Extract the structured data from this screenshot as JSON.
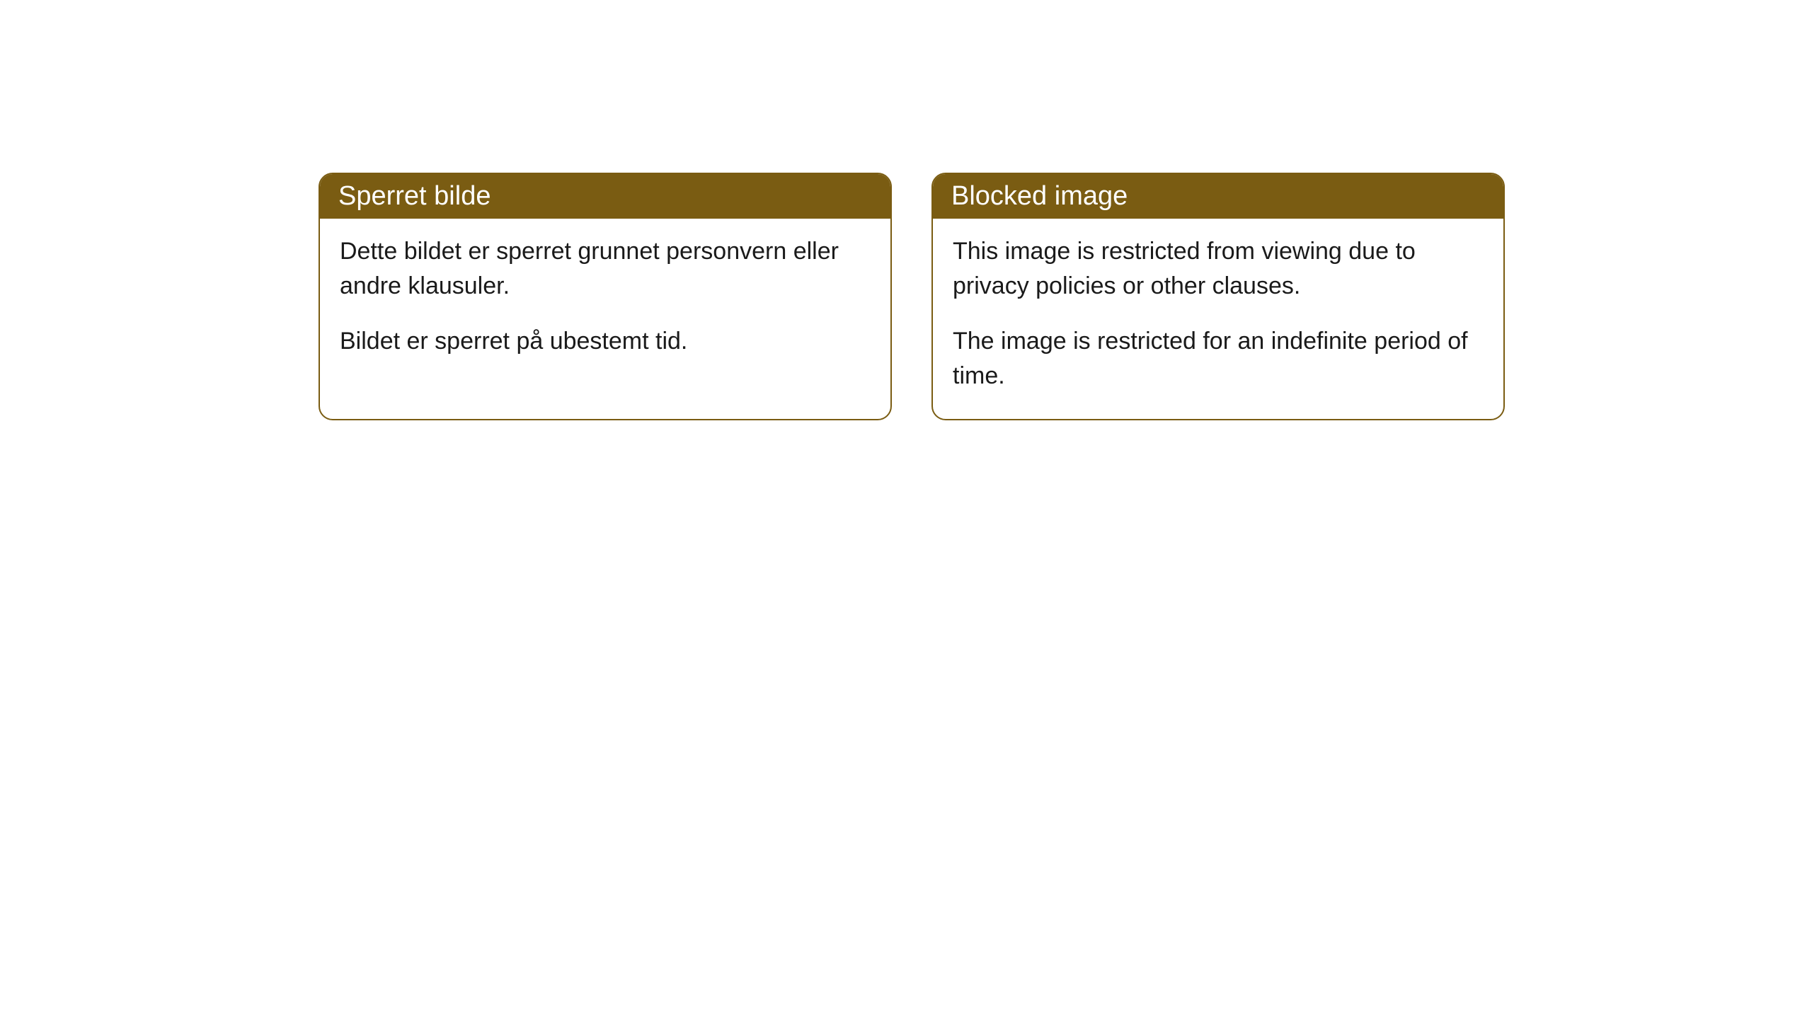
{
  "cards": [
    {
      "title": "Sperret bilde",
      "paragraph1": "Dette bildet er sperret grunnet personvern eller andre klausuler.",
      "paragraph2": "Bildet er sperret på ubestemt tid."
    },
    {
      "title": "Blocked image",
      "paragraph1": "This image is restricted from viewing due to privacy policies or other clauses.",
      "paragraph2": "The image is restricted for an indefinite period of time."
    }
  ],
  "styling": {
    "header_background": "#7a5c12",
    "header_text_color": "#ffffff",
    "border_color": "#7a5c12",
    "body_background": "#ffffff",
    "body_text_color": "#1a1a1a",
    "border_radius": 20,
    "header_fontsize": 38,
    "body_fontsize": 34
  }
}
